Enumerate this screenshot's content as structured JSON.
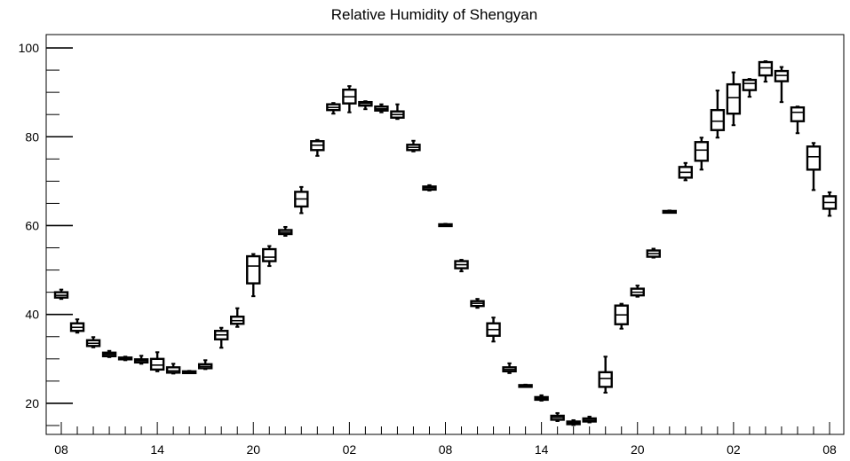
{
  "chart_data": {
    "type": "box",
    "title": "Relative Humidity of Shengyan",
    "xlabel": "",
    "ylabel": "",
    "ylim": [
      13,
      103
    ],
    "yticks": [
      20,
      40,
      60,
      80,
      100
    ],
    "xtick_labels": [
      "08",
      "14",
      "20",
      "02",
      "08",
      "14",
      "20",
      "02",
      "08"
    ],
    "grid": false,
    "series": [
      {
        "boxes": [
          {
            "x": 0,
            "whisker_low": 43.5,
            "q1": 43.8,
            "median": 44.3,
            "q3": 45.0,
            "whisker_high": 45.6
          },
          {
            "x": 1,
            "whisker_low": 35.9,
            "q1": 36.3,
            "median": 37.1,
            "q3": 38.0,
            "whisker_high": 38.9
          },
          {
            "x": 2,
            "whisker_low": 32.6,
            "q1": 32.9,
            "median": 33.5,
            "q3": 34.2,
            "whisker_high": 34.9
          },
          {
            "x": 3,
            "whisker_low": 30.4,
            "q1": 30.6,
            "median": 31.0,
            "q3": 31.4,
            "whisker_high": 31.8
          },
          {
            "x": 4,
            "whisker_low": 29.7,
            "q1": 29.9,
            "median": 30.1,
            "q3": 30.3,
            "whisker_high": 30.5
          },
          {
            "x": 5,
            "whisker_low": 28.9,
            "q1": 29.2,
            "median": 29.6,
            "q3": 29.9,
            "whisker_high": 30.7
          },
          {
            "x": 6,
            "whisker_low": 27.2,
            "q1": 27.6,
            "median": 28.6,
            "q3": 30.0,
            "whisker_high": 31.5
          },
          {
            "x": 7,
            "whisker_low": 26.7,
            "q1": 26.9,
            "median": 27.3,
            "q3": 28.1,
            "whisker_high": 28.9
          },
          {
            "x": 8,
            "whisker_low": 26.9,
            "q1": 27.0,
            "median": 27.1,
            "q3": 27.2,
            "whisker_high": 27.3
          },
          {
            "x": 9,
            "whisker_low": 27.7,
            "q1": 27.9,
            "median": 28.3,
            "q3": 28.8,
            "whisker_high": 29.7
          },
          {
            "x": 10,
            "whisker_low": 32.5,
            "q1": 34.4,
            "median": 35.4,
            "q3": 36.3,
            "whisker_high": 37.0
          },
          {
            "x": 11,
            "whisker_low": 37.2,
            "q1": 37.9,
            "median": 38.6,
            "q3": 39.5,
            "whisker_high": 41.4
          },
          {
            "x": 12,
            "whisker_low": 44.1,
            "q1": 47.0,
            "median": 50.9,
            "q3": 53.1,
            "whisker_high": 53.6
          },
          {
            "x": 13,
            "whisker_low": 50.9,
            "q1": 52.0,
            "median": 52.9,
            "q3": 54.7,
            "whisker_high": 55.4
          },
          {
            "x": 14,
            "whisker_low": 57.7,
            "q1": 58.1,
            "median": 58.5,
            "q3": 59.0,
            "whisker_high": 59.7
          },
          {
            "x": 15,
            "whisker_low": 62.8,
            "q1": 64.3,
            "median": 66.0,
            "q3": 67.6,
            "whisker_high": 68.7
          },
          {
            "x": 16,
            "whisker_low": 75.7,
            "q1": 77.0,
            "median": 78.1,
            "q3": 79.0,
            "whisker_high": 79.3
          },
          {
            "x": 17,
            "whisker_low": 85.2,
            "q1": 86.0,
            "median": 86.6,
            "q3": 87.3,
            "whisker_high": 87.6
          },
          {
            "x": 18,
            "whisker_low": 85.5,
            "q1": 87.5,
            "median": 89.0,
            "q3": 90.6,
            "whisker_high": 91.4
          },
          {
            "x": 19,
            "whisker_low": 86.2,
            "q1": 87.0,
            "median": 87.5,
            "q3": 87.8,
            "whisker_high": 88.0
          },
          {
            "x": 20,
            "whisker_low": 85.5,
            "q1": 85.9,
            "median": 86.3,
            "q3": 86.8,
            "whisker_high": 87.3
          },
          {
            "x": 21,
            "whisker_low": 84.0,
            "q1": 84.3,
            "median": 85.0,
            "q3": 85.7,
            "whisker_high": 87.3
          },
          {
            "x": 22,
            "whisker_low": 76.7,
            "q1": 77.0,
            "median": 77.6,
            "q3": 78.2,
            "whisker_high": 79.1
          },
          {
            "x": 23,
            "whisker_low": 67.9,
            "q1": 68.1,
            "median": 68.5,
            "q3": 68.8,
            "whisker_high": 69.1
          },
          {
            "x": 24,
            "whisker_low": 60.0,
            "q1": 60.1,
            "median": 60.2,
            "q3": 60.3,
            "whisker_high": 60.4
          },
          {
            "x": 25,
            "whisker_low": 49.7,
            "q1": 50.4,
            "median": 51.2,
            "q3": 52.0,
            "whisker_high": 52.3
          },
          {
            "x": 26,
            "whisker_low": 41.5,
            "q1": 41.9,
            "median": 42.5,
            "q3": 43.0,
            "whisker_high": 43.5
          },
          {
            "x": 27,
            "whisker_low": 33.9,
            "q1": 35.2,
            "median": 36.6,
            "q3": 38.0,
            "whisker_high": 39.3
          },
          {
            "x": 28,
            "whisker_low": 26.8,
            "q1": 27.2,
            "median": 27.6,
            "q3": 28.1,
            "whisker_high": 29.0
          },
          {
            "x": 29,
            "whisker_low": 23.8,
            "q1": 23.9,
            "median": 24.0,
            "q3": 24.1,
            "whisker_high": 24.2
          },
          {
            "x": 30,
            "whisker_low": 20.6,
            "q1": 20.8,
            "median": 21.1,
            "q3": 21.4,
            "whisker_high": 21.8
          },
          {
            "x": 31,
            "whisker_low": 16.0,
            "q1": 16.3,
            "median": 16.8,
            "q3": 17.2,
            "whisker_high": 17.8
          },
          {
            "x": 32,
            "whisker_low": 15.1,
            "q1": 15.3,
            "median": 15.6,
            "q3": 15.9,
            "whisker_high": 16.2
          },
          {
            "x": 33,
            "whisker_low": 15.7,
            "q1": 15.9,
            "median": 16.2,
            "q3": 16.6,
            "whisker_high": 17.0
          },
          {
            "x": 34,
            "whisker_low": 22.4,
            "q1": 23.7,
            "median": 25.6,
            "q3": 27.0,
            "whisker_high": 30.5
          },
          {
            "x": 35,
            "whisker_low": 36.8,
            "q1": 37.8,
            "median": 39.9,
            "q3": 42.0,
            "whisker_high": 42.4
          },
          {
            "x": 36,
            "whisker_low": 44.0,
            "q1": 44.3,
            "median": 45.0,
            "q3": 45.8,
            "whisker_high": 46.5
          },
          {
            "x": 37,
            "whisker_low": 52.8,
            "q1": 53.0,
            "median": 53.7,
            "q3": 54.4,
            "whisker_high": 54.8
          },
          {
            "x": 38,
            "whisker_low": 62.9,
            "q1": 63.1,
            "median": 63.2,
            "q3": 63.3,
            "whisker_high": 63.4
          },
          {
            "x": 39,
            "whisker_low": 70.2,
            "q1": 70.8,
            "median": 72.0,
            "q3": 73.2,
            "whisker_high": 74.1
          },
          {
            "x": 40,
            "whisker_low": 72.6,
            "q1": 74.6,
            "median": 77.0,
            "q3": 78.8,
            "whisker_high": 79.8
          },
          {
            "x": 41,
            "whisker_low": 79.8,
            "q1": 81.5,
            "median": 83.5,
            "q3": 86.0,
            "whisker_high": 90.4
          },
          {
            "x": 42,
            "whisker_low": 82.6,
            "q1": 85.2,
            "median": 88.8,
            "q3": 91.8,
            "whisker_high": 94.5
          },
          {
            "x": 43,
            "whisker_low": 89.0,
            "q1": 90.5,
            "median": 92.0,
            "q3": 92.8,
            "whisker_high": 93.0
          },
          {
            "x": 44,
            "whisker_low": 92.4,
            "q1": 93.8,
            "median": 95.5,
            "q3": 96.8,
            "whisker_high": 97.0
          },
          {
            "x": 45,
            "whisker_low": 87.8,
            "q1": 92.5,
            "median": 93.8,
            "q3": 94.8,
            "whisker_high": 95.7
          },
          {
            "x": 46,
            "whisker_low": 80.8,
            "q1": 83.5,
            "median": 85.5,
            "q3": 86.6,
            "whisker_high": 86.8
          },
          {
            "x": 47,
            "whisker_low": 68.0,
            "q1": 72.6,
            "median": 75.5,
            "q3": 77.8,
            "whisker_high": 78.6
          },
          {
            "x": 48,
            "whisker_low": 62.2,
            "q1": 63.8,
            "median": 65.2,
            "q3": 66.6,
            "whisker_high": 67.5
          }
        ]
      }
    ],
    "colors": {
      "box": "#000000",
      "axis": "#000000",
      "background": "#ffffff"
    }
  }
}
